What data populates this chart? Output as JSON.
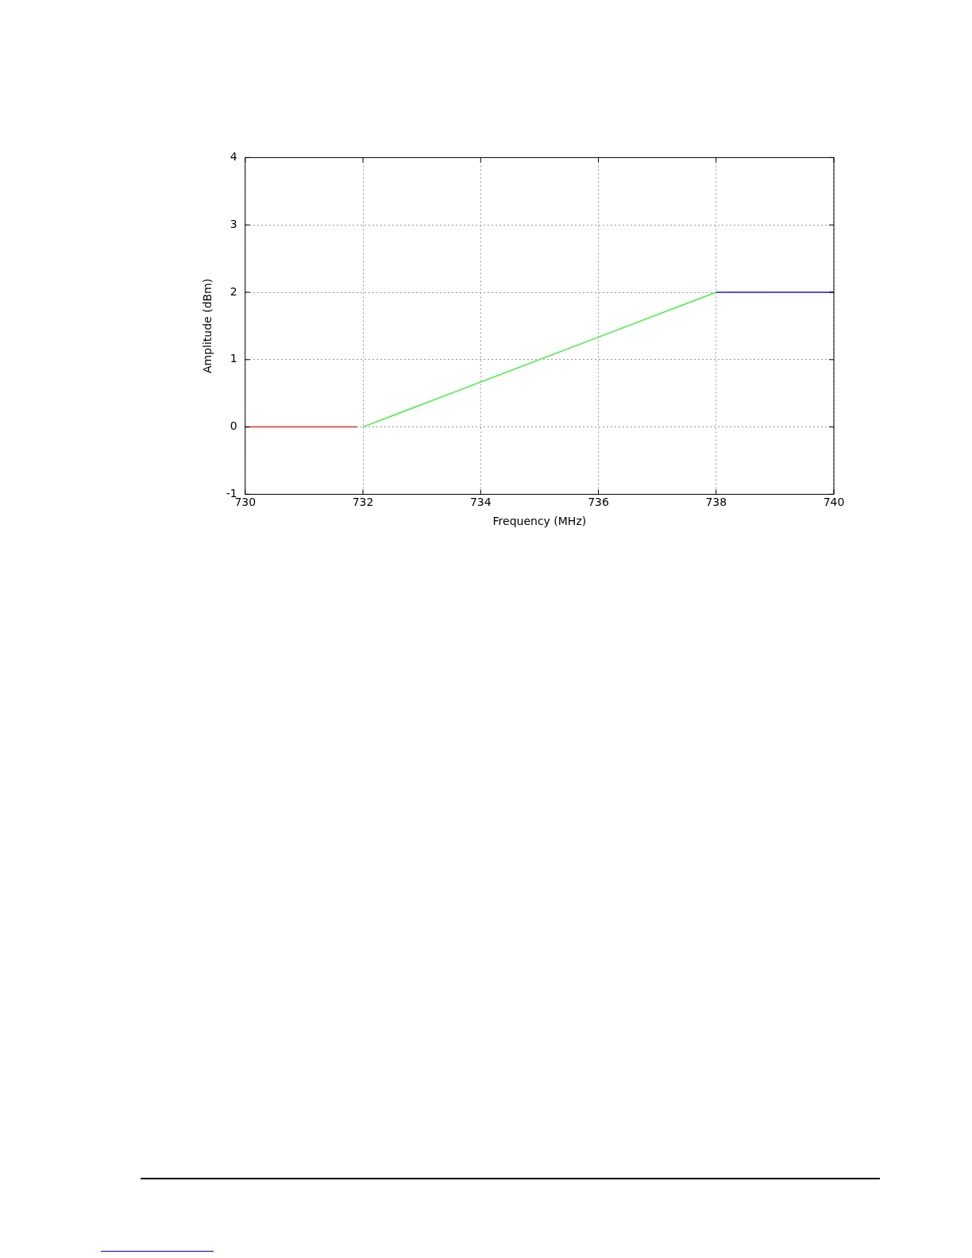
{
  "chart_data": {
    "type": "line",
    "xlabel": "Frequency (MHz)",
    "ylabel": "Amplitude (dBm)",
    "series": [
      {
        "color": "#e03030",
        "x": [
          730,
          731.9
        ],
        "values": [
          0,
          0
        ]
      },
      {
        "color": "#40f040",
        "x": [
          732,
          738
        ],
        "values": [
          0,
          2
        ]
      },
      {
        "color": "#2020d0",
        "x": [
          738,
          740
        ],
        "values": [
          2,
          2
        ]
      }
    ],
    "xlim": [
      730,
      740
    ],
    "xticks": [
      730,
      732,
      734,
      736,
      738,
      740
    ],
    "ylim": [
      -1,
      4
    ],
    "yticks": [
      -1,
      0,
      1,
      2,
      3,
      4
    ],
    "grid": true,
    "legend": false,
    "marker": "none"
  }
}
